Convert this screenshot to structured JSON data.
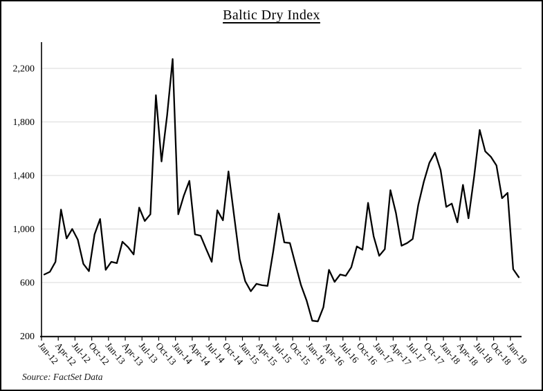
{
  "chart_data": {
    "type": "line",
    "title": "Baltic Dry Index",
    "source_note": "Source: FactSet Data",
    "series_name": "Baltic Dry Index",
    "frequency": "monthly",
    "grid": "horizontal",
    "legend": "none",
    "line_color": "#000000",
    "grid_color": "#d9d9d9",
    "axis_color": "#000000",
    "ylim": [
      200,
      2400
    ],
    "yticks": [
      200,
      600,
      1000,
      1400,
      1800,
      2200
    ],
    "ytick_labels": [
      "200",
      "600",
      "1,000",
      "1,400",
      "1,800",
      "2,200"
    ],
    "x_tick_labels": [
      "Jan-12",
      "Apr-12",
      "Jul-12",
      "Oct-12",
      "Jan-13",
      "Apr-13",
      "Jul-13",
      "Oct-13",
      "Jan-14",
      "Apr-14",
      "Jul-14",
      "Oct-14",
      "Jan-15",
      "Apr-15",
      "Jul-15",
      "Oct-15",
      "Jan-16",
      "Apr-16",
      "Jul-16",
      "Oct-16",
      "Jan-17",
      "Apr-17",
      "Jul-17",
      "Oct-17",
      "Jan-18",
      "Apr-18",
      "Jul-18",
      "Oct-18",
      "Jan-19"
    ],
    "x": [
      "Jan-12",
      "Feb-12",
      "Mar-12",
      "Apr-12",
      "May-12",
      "Jun-12",
      "Jul-12",
      "Aug-12",
      "Sep-12",
      "Oct-12",
      "Nov-12",
      "Dec-12",
      "Jan-13",
      "Feb-13",
      "Mar-13",
      "Apr-13",
      "May-13",
      "Jun-13",
      "Jul-13",
      "Aug-13",
      "Sep-13",
      "Oct-13",
      "Nov-13",
      "Dec-13",
      "Jan-14",
      "Feb-14",
      "Mar-14",
      "Apr-14",
      "May-14",
      "Jun-14",
      "Jul-14",
      "Aug-14",
      "Sep-14",
      "Oct-14",
      "Nov-14",
      "Dec-14",
      "Jan-15",
      "Feb-15",
      "Mar-15",
      "Apr-15",
      "May-15",
      "Jun-15",
      "Jul-15",
      "Aug-15",
      "Sep-15",
      "Oct-15",
      "Nov-15",
      "Dec-15",
      "Jan-16",
      "Feb-16",
      "Mar-16",
      "Apr-16",
      "May-16",
      "Jun-16",
      "Jul-16",
      "Aug-16",
      "Sep-16",
      "Oct-16",
      "Nov-16",
      "Dec-16",
      "Jan-17",
      "Feb-17",
      "Mar-17",
      "Apr-17",
      "May-17",
      "Jun-17",
      "Jul-17",
      "Aug-17",
      "Sep-17",
      "Oct-17",
      "Nov-17",
      "Dec-17",
      "Jan-18",
      "Feb-18",
      "Mar-18",
      "Apr-18",
      "May-18",
      "Jun-18",
      "Jul-18",
      "Aug-18",
      "Sep-18",
      "Oct-18",
      "Nov-18",
      "Dec-18",
      "Jan-19",
      "Feb-19"
    ],
    "values": [
      660,
      680,
      755,
      1145,
      930,
      1000,
      920,
      740,
      685,
      960,
      1075,
      695,
      755,
      745,
      905,
      865,
      810,
      1160,
      1060,
      1110,
      2000,
      1505,
      1850,
      2270,
      1110,
      1250,
      1360,
      960,
      950,
      850,
      755,
      1140,
      1065,
      1430,
      1100,
      775,
      610,
      535,
      590,
      580,
      575,
      830,
      1115,
      900,
      895,
      735,
      580,
      465,
      315,
      310,
      415,
      695,
      605,
      660,
      650,
      715,
      870,
      845,
      1195,
      945,
      800,
      850,
      1290,
      1120,
      875,
      895,
      925,
      1180,
      1355,
      1495,
      1570,
      1440,
      1165,
      1190,
      1050,
      1330,
      1080,
      1390,
      1740,
      1580,
      1540,
      1475,
      1230,
      1270,
      700,
      640
    ]
  }
}
